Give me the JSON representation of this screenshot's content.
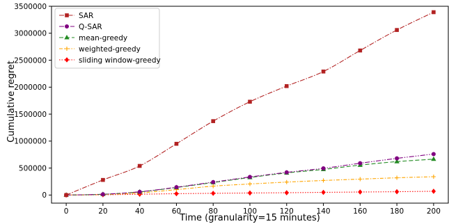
{
  "chart_data": {
    "type": "line",
    "xlabel": "Time (granularity=15 minutes)",
    "ylabel": "Cumulative regret",
    "xlim": [
      -8,
      208
    ],
    "ylim": [
      -150000,
      3500000
    ],
    "xticks": [
      0,
      20,
      40,
      60,
      80,
      100,
      120,
      140,
      160,
      180,
      200
    ],
    "yticks": [
      0,
      500000,
      1000000,
      1500000,
      2000000,
      2500000,
      3000000,
      3500000
    ],
    "x": [
      0,
      20,
      40,
      60,
      80,
      100,
      120,
      140,
      160,
      180,
      200
    ],
    "grid": false,
    "legend_position": "upper left",
    "series": [
      {
        "name": "SAR",
        "color": "#b22222",
        "dash": "7 2 1.5 2",
        "marker": "square",
        "values": [
          0,
          280000,
          540000,
          950000,
          1370000,
          1730000,
          2020000,
          2290000,
          2680000,
          3060000,
          3390000
        ]
      },
      {
        "name": "Q-SAR",
        "color": "#800080",
        "dash": "7 2 1.5 2 1.5 2",
        "marker": "circle",
        "values": [
          0,
          15000,
          60000,
          145000,
          240000,
          335000,
          420000,
          495000,
          590000,
          680000,
          760000
        ]
      },
      {
        "name": "mean-greedy",
        "color": "#228b22",
        "dash": "6 3",
        "marker": "triangle",
        "values": [
          0,
          14000,
          58000,
          140000,
          232000,
          325000,
          410000,
          475000,
          555000,
          620000,
          665000
        ]
      },
      {
        "name": "weighted-greedy",
        "color": "#ffa500",
        "dash": "5 2 1.5 2",
        "marker": "plus",
        "values": [
          0,
          10000,
          40000,
          100000,
          165000,
          205000,
          240000,
          270000,
          295000,
          320000,
          340000
        ]
      },
      {
        "name": "sliding window-greedy",
        "color": "#ff0000",
        "dash": "1.5 2",
        "marker": "diamond",
        "values": [
          0,
          5000,
          15000,
          25000,
          32000,
          38000,
          43000,
          50000,
          56000,
          62000,
          70000
        ]
      }
    ]
  }
}
